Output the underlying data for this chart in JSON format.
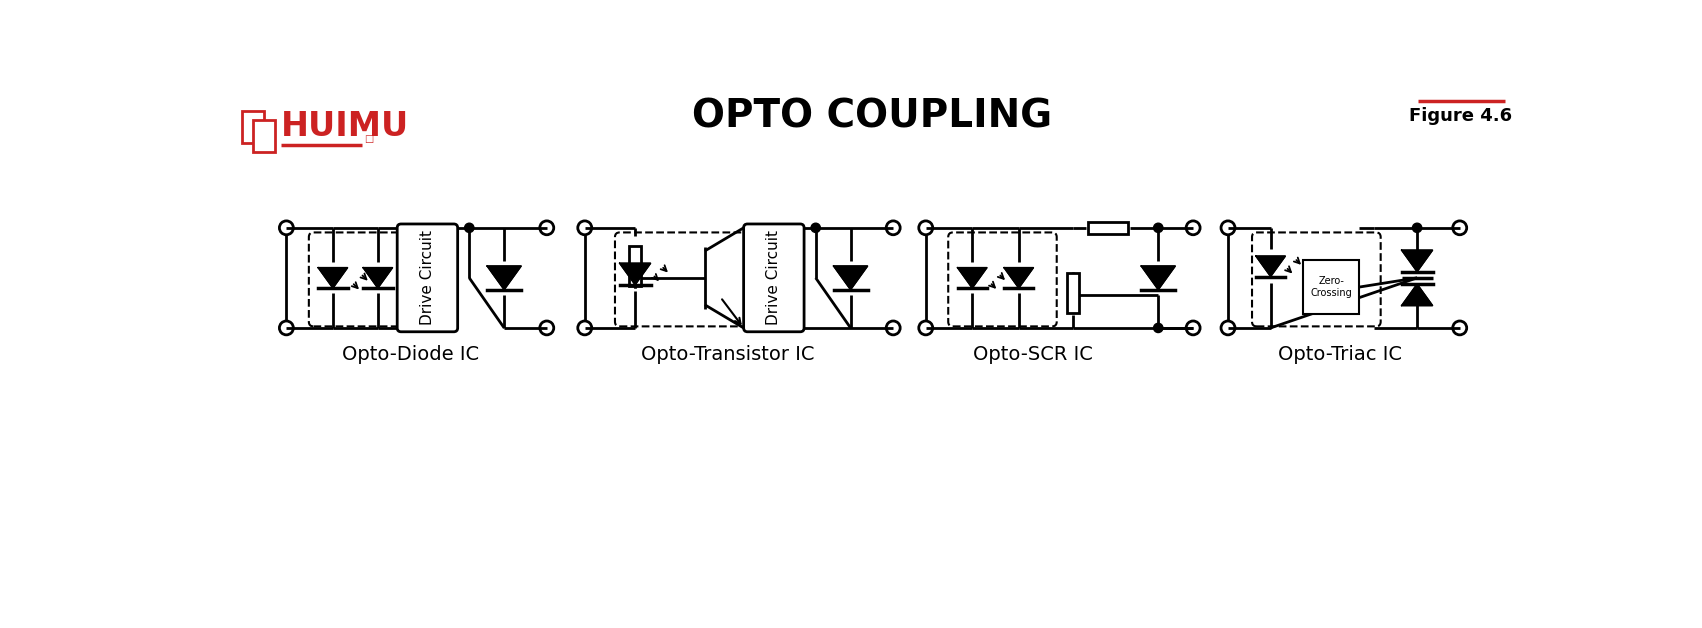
{
  "title": "OPTO COUPLING",
  "figure_label": "Figure 4.6",
  "bg_color": "#ffffff",
  "title_fontsize": 28,
  "label_fontsize": 14,
  "huimu_color": "#cc2222",
  "diagrams": [
    {
      "label": "Opto-Diode IC"
    },
    {
      "label": "Opto-Transistor IC"
    },
    {
      "label": "Opto-SCR IC"
    },
    {
      "label": "Opto-Triac IC"
    }
  ]
}
